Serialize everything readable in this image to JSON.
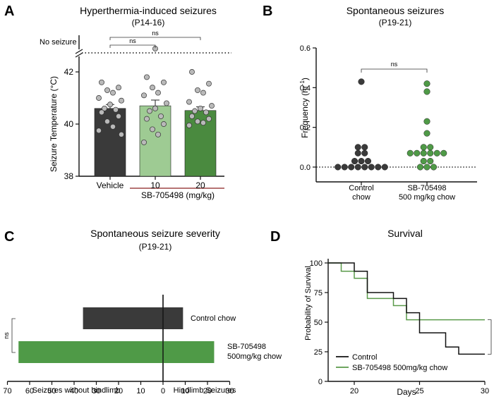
{
  "colors": {
    "vehicle": "#3a3a3a",
    "dose10": "#9ecb93",
    "dose20": "#4a8a3f",
    "control": "#3a3a3a",
    "treated": "#4f9a47",
    "point_gray": "#b9b9b9",
    "axis": "#111111",
    "bracket_red": "#8b2020",
    "survival_control": "#111111",
    "survival_treated": "#5a9a4a"
  },
  "chart_data": [
    {
      "panel": "A",
      "type": "bar",
      "title": "Hyperthermia-induced seizures",
      "subtitle": "(P14-16)",
      "ylabel": "Seizure Temperature (°C)",
      "ylim": [
        38,
        42.8
      ],
      "yticks": [
        38,
        40,
        42
      ],
      "categories": [
        "Vehicle",
        "10",
        "20"
      ],
      "values": [
        40.6,
        40.7,
        40.52
      ],
      "errors": [
        0.15,
        0.22,
        0.14
      ],
      "group_label": "SB-705498 (mg/kg)",
      "no_seizure_label": "No seizure",
      "points": [
        [
          41.6,
          41.4,
          41.3,
          41.2,
          41.0,
          40.9,
          40.75,
          40.6,
          40.55,
          40.45,
          40.3,
          40.1,
          39.9,
          39.75,
          39.6
        ],
        [
          41.8,
          41.6,
          41.4,
          41.2,
          41.1,
          40.8,
          40.6,
          40.5,
          40.3,
          40.2,
          40.0,
          39.8,
          39.6,
          39.3
        ],
        [
          42.0,
          41.55,
          41.3,
          41.2,
          40.85,
          40.7,
          40.6,
          40.5,
          40.45,
          40.3,
          40.2,
          40.1,
          40.05,
          39.95
        ]
      ],
      "no_seizure_points": [
        0,
        1,
        0
      ],
      "annotations": [
        {
          "from": "Vehicle",
          "to": "10",
          "text": "ns"
        },
        {
          "from": "Vehicle",
          "to": "20",
          "text": "ns"
        }
      ]
    },
    {
      "panel": "B",
      "type": "scatter",
      "title": "Spontaneous seizures",
      "subtitle": "(P19-21)",
      "ylabel": "Frequency (hr",
      "ylabel_sup": "-1",
      "ylabel_end": ")",
      "ylim": [
        0,
        0.6
      ],
      "yticks": [
        "0.0",
        "0.2",
        "0.4",
        "0.6"
      ],
      "categories": [
        {
          "line1": "Control",
          "line2": "chow"
        },
        {
          "line1": "SB-705498",
          "line2": "500 mg/kg chow"
        }
      ],
      "series": [
        {
          "name": "Control chow",
          "values": [
            0.43,
            0.1,
            0.1,
            0.07,
            0.07,
            0.03,
            0.03,
            0.03,
            0.0,
            0.0,
            0.0,
            0.0,
            0.0,
            0.0,
            0.0,
            0.0
          ]
        },
        {
          "name": "SB-705498 500 mg/kg chow",
          "values": [
            0.42,
            0.38,
            0.23,
            0.17,
            0.1,
            0.1,
            0.07,
            0.07,
            0.07,
            0.07,
            0.07,
            0.07,
            0.03,
            0.03,
            0.0,
            0.0,
            0.0
          ]
        }
      ],
      "annotation": "ns"
    },
    {
      "panel": "C",
      "type": "bar",
      "orientation": "horizontal",
      "title": "Spontaneous seizure severity",
      "subtitle": "(P19-21)",
      "series": [
        {
          "name": "Control chow",
          "label": "Control chow",
          "without_hindlimb": 36,
          "hindlimb": 9
        },
        {
          "name": "SB-705498 500mg/kg chow",
          "label_line1": "SB-705498",
          "label_line2": "500mg/kg chow",
          "without_hindlimb": 65,
          "hindlimb": 23
        }
      ],
      "xticks": [
        "70",
        "60",
        "50",
        "40",
        "30",
        "20",
        "10",
        "0",
        "10",
        "20",
        "30"
      ],
      "xlabel_left": "Seizures without hindlimb",
      "xlabel_right": "Hindlimb Seizures",
      "annotation": "ns"
    },
    {
      "panel": "D",
      "type": "line",
      "title": "Survival",
      "xlabel": "Days",
      "ylabel": "Probability of Survival",
      "xlim": [
        18,
        30
      ],
      "ylim": [
        0,
        100
      ],
      "xticks": [
        "20",
        "25",
        "30"
      ],
      "yticks": [
        "0",
        "25",
        "50",
        "75",
        "100"
      ],
      "series": [
        {
          "name": "Control",
          "steps": [
            [
              18,
              100
            ],
            [
              20,
              100
            ],
            [
              20,
              93
            ],
            [
              21,
              93
            ],
            [
              21,
              75
            ],
            [
              23,
              75
            ],
            [
              23,
              70
            ],
            [
              24,
              70
            ],
            [
              24,
              58
            ],
            [
              25,
              58
            ],
            [
              25,
              41
            ],
            [
              27,
              41
            ],
            [
              27,
              29
            ],
            [
              28,
              29
            ],
            [
              28,
              23
            ],
            [
              30,
              23
            ]
          ]
        },
        {
          "name": "SB-705498 500mg/kg chow",
          "steps": [
            [
              18,
              100
            ],
            [
              19,
              100
            ],
            [
              19,
              93
            ],
            [
              20,
              93
            ],
            [
              20,
              87
            ],
            [
              21,
              87
            ],
            [
              21,
              70
            ],
            [
              23,
              70
            ],
            [
              23,
              64
            ],
            [
              24,
              64
            ],
            [
              24,
              52
            ],
            [
              30,
              52
            ]
          ]
        }
      ],
      "annotation": "ns"
    }
  ],
  "panel_labels": [
    "A",
    "B",
    "C",
    "D"
  ]
}
